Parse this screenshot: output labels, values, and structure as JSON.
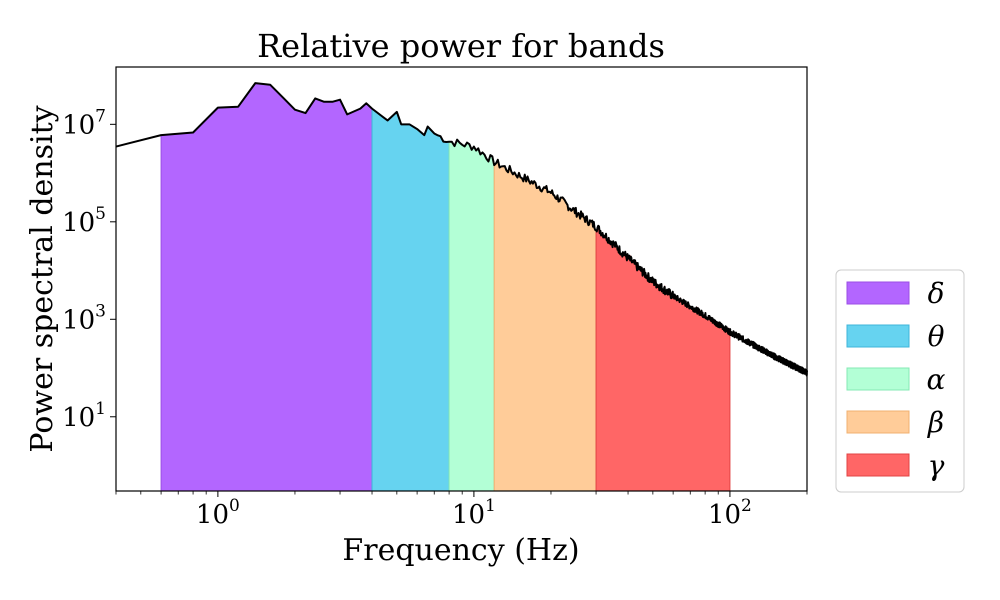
{
  "chart_data": {
    "type": "area",
    "title": "Relative power for bands",
    "xlabel": "Frequency (Hz)",
    "ylabel": "Power spectral density",
    "xscale": "log",
    "yscale": "log",
    "xlim": [
      0.4,
      200
    ],
    "ylim": [
      0.3,
      150000000.0
    ],
    "x_ticks": [
      {
        "value": 1,
        "base": "10",
        "exp": "0"
      },
      {
        "value": 10,
        "base": "10",
        "exp": "1"
      },
      {
        "value": 100,
        "base": "10",
        "exp": "2"
      }
    ],
    "y_ticks": [
      {
        "value": 10,
        "base": "10",
        "exp": "1"
      },
      {
        "value": 1000,
        "base": "10",
        "exp": "3"
      },
      {
        "value": 100000,
        "base": "10",
        "exp": "5"
      },
      {
        "value": 10000000,
        "base": "10",
        "exp": "7"
      }
    ],
    "psd_line": {
      "name": "",
      "color": "#000000",
      "anchors": [
        [
          0.4,
          3500000.0
        ],
        [
          0.6,
          6000000.0
        ],
        [
          0.8,
          6800000.0
        ],
        [
          1.0,
          22000000.0
        ],
        [
          1.2,
          23000000.0
        ],
        [
          1.4,
          70000000.0
        ],
        [
          1.6,
          65000000.0
        ],
        [
          1.8,
          35000000.0
        ],
        [
          2.0,
          20000000.0
        ],
        [
          2.2,
          17000000.0
        ],
        [
          2.4,
          34000000.0
        ],
        [
          2.6,
          29000000.0
        ],
        [
          2.8,
          29000000.0
        ],
        [
          3.0,
          32000000.0
        ],
        [
          3.2,
          16000000.0
        ],
        [
          3.6,
          21000000.0
        ],
        [
          3.8,
          27000000.0
        ],
        [
          4.0,
          21000000.0
        ],
        [
          4.6,
          12000000.0
        ],
        [
          5.0,
          18000000.0
        ],
        [
          5.2,
          10000000.0
        ],
        [
          5.6,
          10000000.0
        ],
        [
          6.0,
          8000000.0
        ],
        [
          6.4,
          6000000.0
        ],
        [
          6.6,
          9000000.0
        ],
        [
          7.0,
          6500000.0
        ],
        [
          8.0,
          4500000.0
        ],
        [
          10,
          3500000.0
        ],
        [
          12,
          1700000.0
        ],
        [
          15,
          900000.0
        ],
        [
          20,
          400000.0
        ],
        [
          25,
          160000.0
        ],
        [
          30,
          80000.0
        ],
        [
          40,
          18000.0
        ],
        [
          50,
          6000.0
        ],
        [
          60,
          3000.0
        ],
        [
          80,
          1200.0
        ],
        [
          100,
          550.0
        ],
        [
          150,
          170.0
        ],
        [
          200,
          80
        ]
      ]
    },
    "bands": [
      {
        "label": "δ",
        "range": [
          0.6,
          4
        ],
        "color": "#b366ff",
        "edge": "#9b4ee6"
      },
      {
        "label": "θ",
        "range": [
          4,
          8
        ],
        "color": "#66d3f0",
        "edge": "#3fb5da"
      },
      {
        "label": "α",
        "range": [
          8,
          12
        ],
        "color": "#b3ffd6",
        "edge": "#86e8b4"
      },
      {
        "label": "β",
        "range": [
          12,
          30
        ],
        "color": "#ffcc99",
        "edge": "#f0b070"
      },
      {
        "label": "γ",
        "range": [
          30,
          100
        ],
        "color": "#ff6666",
        "edge": "#e04444"
      }
    ],
    "legend": {
      "position": "right"
    }
  }
}
